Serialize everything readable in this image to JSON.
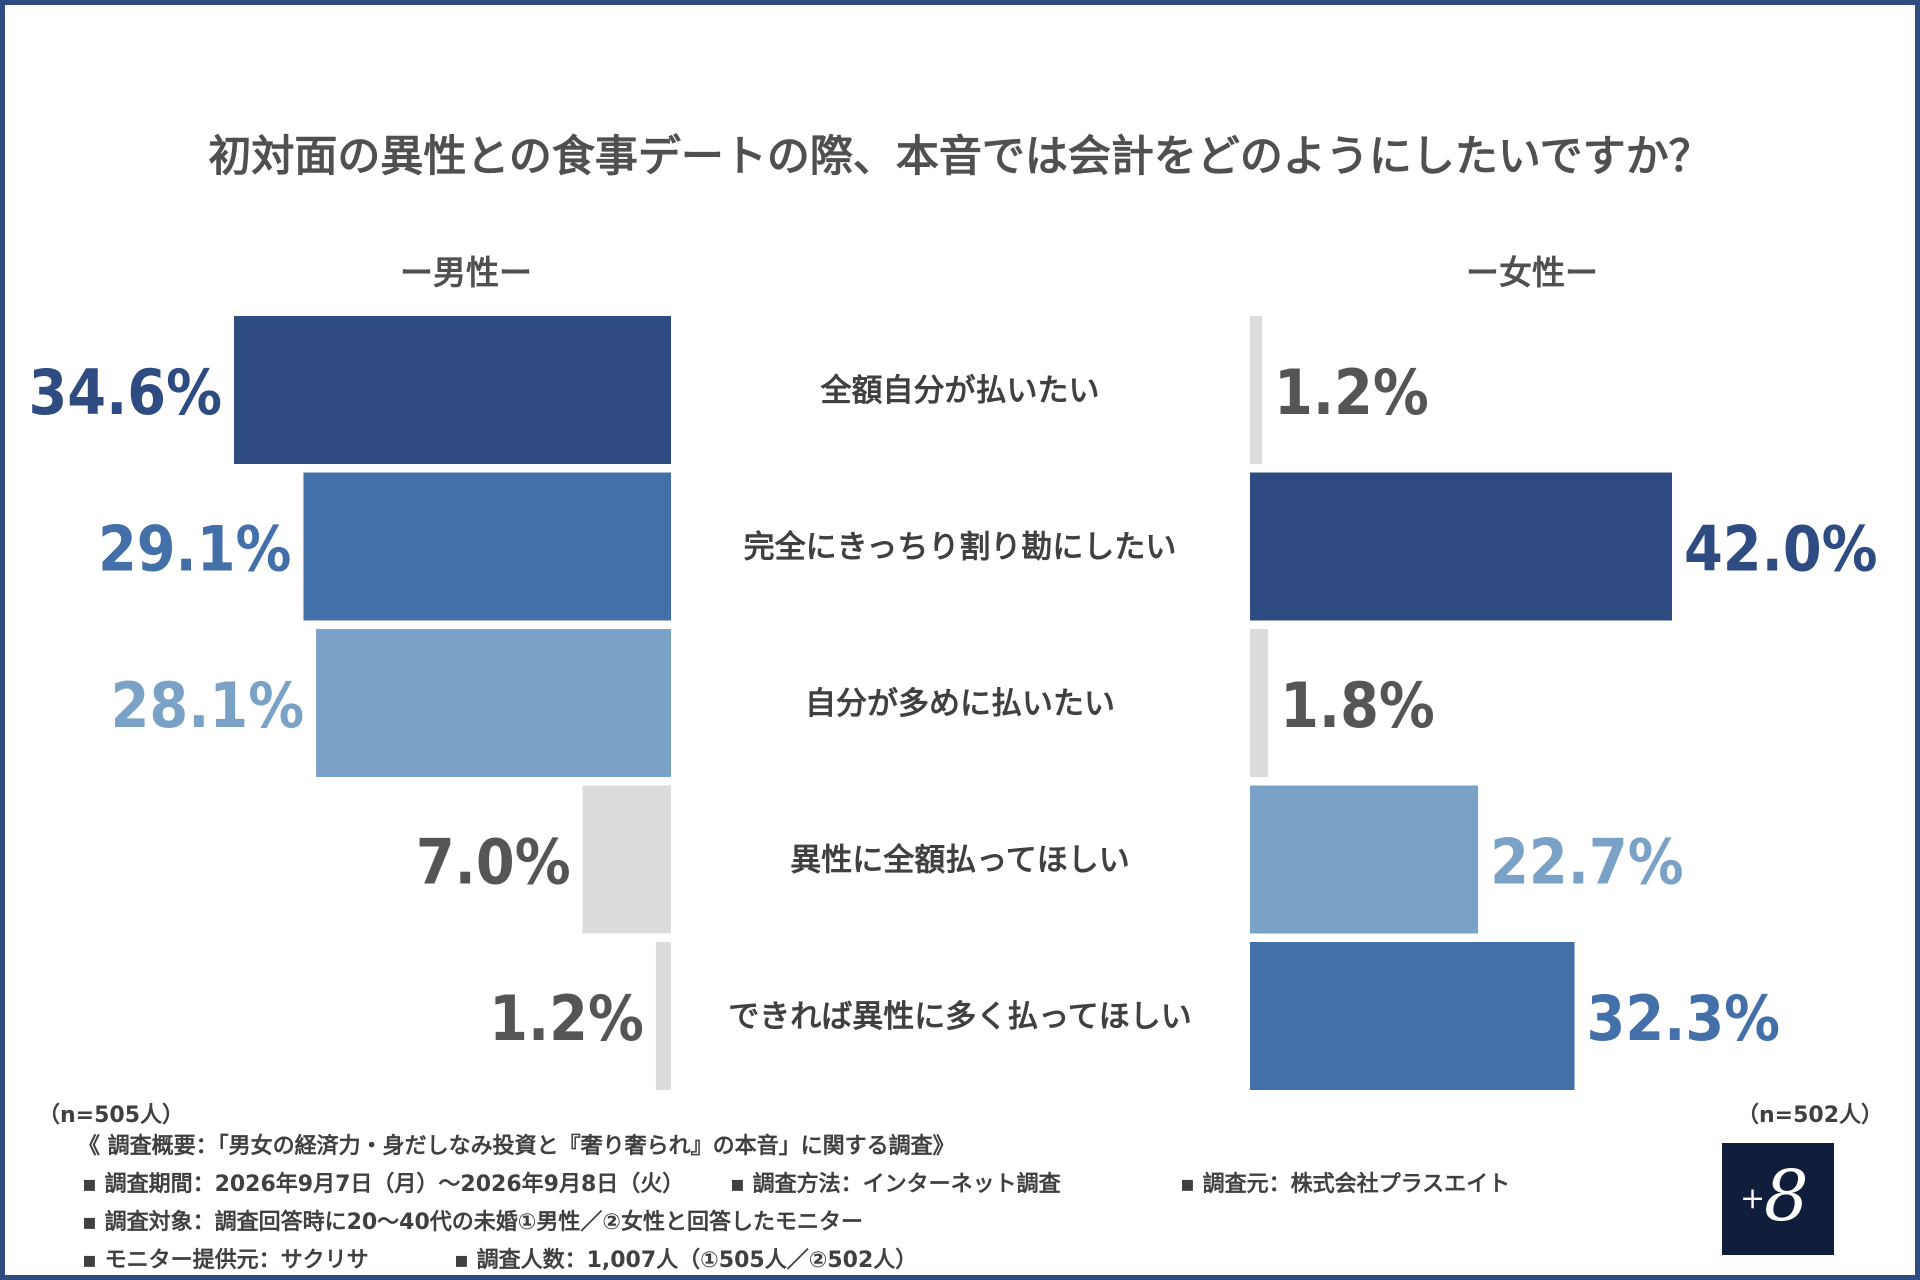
{
  "title": "初対面の異性との食事デートの際、本音では会計をどのようにしたいですか？",
  "chart_data": {
    "type": "bar",
    "categories": [
      "全額自分が払いたい",
      "完全にきっちり割り勘にしたい",
      "自分が多めに払いたい",
      "異性に全額払ってほしい",
      "できれば異性に多く払ってほしい"
    ],
    "series": [
      {
        "name": "ー男性ー",
        "values": [
          34.6,
          29.1,
          28.1,
          7.0,
          1.2
        ],
        "labels": [
          "34.6%",
          "29.1%",
          "28.1%",
          "7.0%",
          "1.2%"
        ]
      },
      {
        "name": "ー女性ー",
        "values": [
          1.2,
          42.0,
          1.8,
          22.7,
          32.3
        ],
        "labels": [
          "1.2%",
          "42.0%",
          "1.8%",
          "22.7%",
          "32.3%"
        ]
      }
    ],
    "unit": "%"
  },
  "colors": {
    "rank1": "#2e4b82",
    "rank2": "#4470aa",
    "rank3": "#7aa2c6",
    "other": "#dcdcdc",
    "other_label": "#555555",
    "border": "#2e4b82"
  },
  "men_n": "（n=505人）",
  "women_n": "（n=502人）",
  "footer": {
    "overview": "《 調査概要：「男女の経済力・身だしなみ投資と『奢り奢られ』の本音」に関する調査》",
    "period": "▪ 調査期間：2026年9月7日（月）〜2026年9月8日（火）",
    "method": "▪ 調査方法：インターネット調査",
    "source": "▪ 調査元：株式会社プラスエイト",
    "target": "▪ 調査対象：調査回答時に20〜40代の未婚①男性／②女性と回答したモニター",
    "provider": "▪ モニター提供元：サクリサ",
    "count": "▪ 調査人数：1,007人（①505人／②502人）"
  },
  "logo": {
    "plus": "+",
    "eight": "8"
  }
}
